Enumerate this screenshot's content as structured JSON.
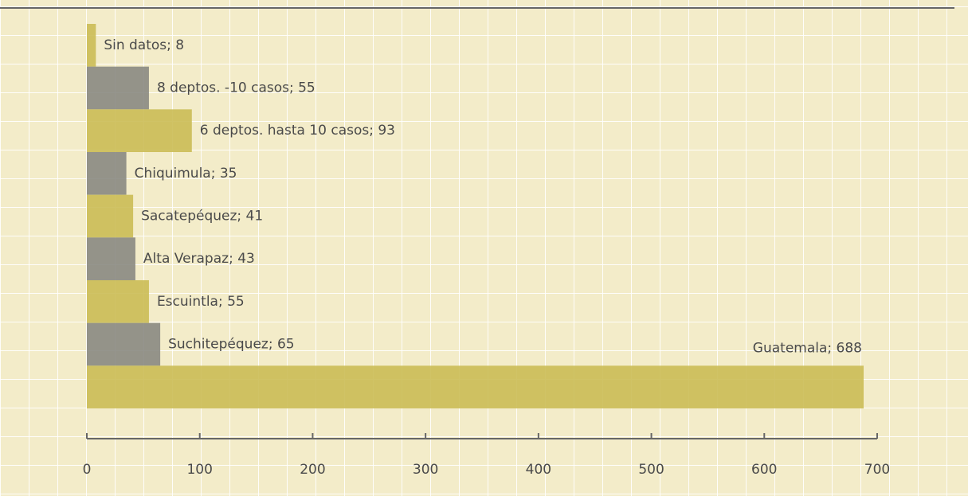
{
  "chart_data": {
    "type": "bar",
    "orientation": "horizontal",
    "values": [
      8,
      55,
      93,
      35,
      41,
      43,
      55,
      65,
      688
    ],
    "value_labels": [
      "Sin datos; 8",
      "8 deptos. -10 casos; 55",
      "6 deptos. hasta 10 casos; 93",
      "Chiquimula; 35",
      "Sacatepéquez; 41",
      "Alta Verapaz; 43",
      "Escuintla; 55",
      "Suchitepéquez; 65",
      "Guatemala; 688"
    ],
    "colors": [
      "#cbbd55",
      "#8a8a82",
      "#cbbd55",
      "#8a8a82",
      "#cbbd55",
      "#8a8a82",
      "#cbbd55",
      "#8a8a82",
      "#cbbd55"
    ],
    "xlim": [
      0,
      700
    ],
    "xticks": [
      0,
      100,
      200,
      300,
      400,
      500,
      600,
      700
    ],
    "grid": true
  }
}
